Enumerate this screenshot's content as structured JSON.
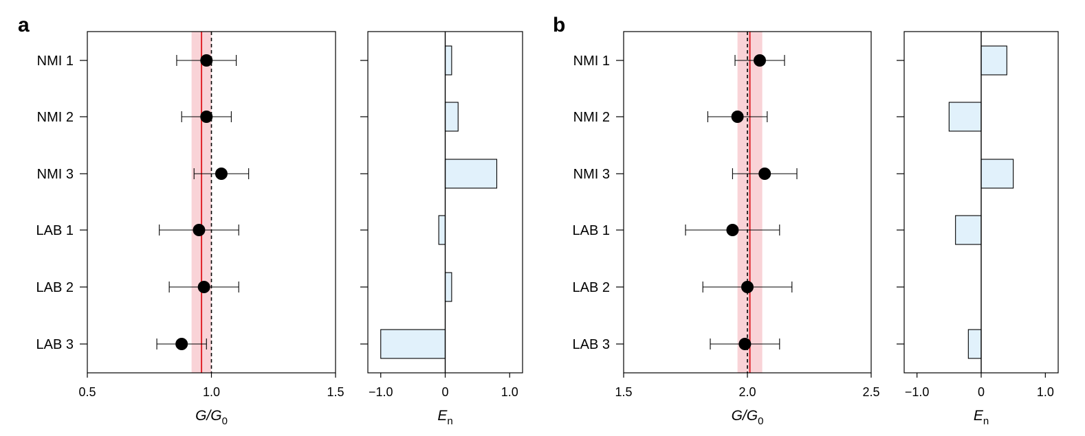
{
  "chart_data": [
    {
      "type": "scatter",
      "panel": "a",
      "ylabels": [
        "NMI 1",
        "NMI 2",
        "NMI 3",
        "LAB 1",
        "LAB 2",
        "LAB 3"
      ],
      "xlabel": "G/G",
      "xlabel_sub": "0",
      "xlim": [
        0.5,
        1.5
      ],
      "xticks": [
        "0.5",
        "1.0",
        "1.5"
      ],
      "xtick_values": [
        0.5,
        1.0,
        1.5
      ],
      "values": [
        0.98,
        0.98,
        1.04,
        0.95,
        0.97,
        0.88
      ],
      "err_low": [
        0.86,
        0.88,
        0.93,
        0.79,
        0.83,
        0.78
      ],
      "err_high": [
        1.1,
        1.08,
        1.15,
        1.11,
        1.11,
        0.98
      ],
      "reference_value": 0.96,
      "reference_band": [
        0.92,
        1.0
      ],
      "nominal_value": 1.0
    },
    {
      "type": "bar",
      "panel": "a",
      "orientation": "horizontal",
      "categories": [
        "NMI 1",
        "NMI 2",
        "NMI 3",
        "LAB 1",
        "LAB 2",
        "LAB 3"
      ],
      "values": [
        0.1,
        0.2,
        0.8,
        -0.1,
        0.1,
        -1.0
      ],
      "xlabel": "E",
      "xlabel_sub": "n",
      "xlim": [
        -1.2,
        1.2
      ],
      "xticks": [
        "−1.0",
        "0",
        "1.0"
      ],
      "xtick_values": [
        -1.0,
        0.0,
        1.0
      ]
    },
    {
      "type": "scatter",
      "panel": "b",
      "ylabels": [
        "NMI 1",
        "NMI 2",
        "NMI 3",
        "LAB 1",
        "LAB 2",
        "LAB 3"
      ],
      "xlabel": "G/G",
      "xlabel_sub": "0",
      "xlim": [
        1.5,
        2.5
      ],
      "xticks": [
        "1.5",
        "2.0",
        "2.5"
      ],
      "xtick_values": [
        1.5,
        2.0,
        2.5
      ],
      "values": [
        2.05,
        1.96,
        2.07,
        1.94,
        2.0,
        1.99
      ],
      "err_low": [
        1.95,
        1.84,
        1.94,
        1.75,
        1.82,
        1.85
      ],
      "err_high": [
        2.15,
        2.08,
        2.2,
        2.13,
        2.18,
        2.13
      ],
      "reference_value": 2.01,
      "reference_band": [
        1.96,
        2.06
      ],
      "nominal_value": 2.0
    },
    {
      "type": "bar",
      "panel": "b",
      "orientation": "horizontal",
      "categories": [
        "NMI 1",
        "NMI 2",
        "NMI 3",
        "LAB 1",
        "LAB 2",
        "LAB 3"
      ],
      "values": [
        0.4,
        -0.5,
        0.5,
        -0.4,
        0.0,
        -0.2
      ],
      "xlabel": "E",
      "xlabel_sub": "n",
      "xlim": [
        -1.2,
        1.2
      ],
      "xticks": [
        "−1.0",
        "0",
        "1.0"
      ],
      "xtick_values": [
        -1.0,
        0.0,
        1.0
      ]
    }
  ],
  "colors": {
    "marker": "#000000",
    "reference_line": "#e0242b",
    "reference_band": "#f9d3d7",
    "bar_fill": "#e1f1fb",
    "bar_stroke": "#000000"
  }
}
